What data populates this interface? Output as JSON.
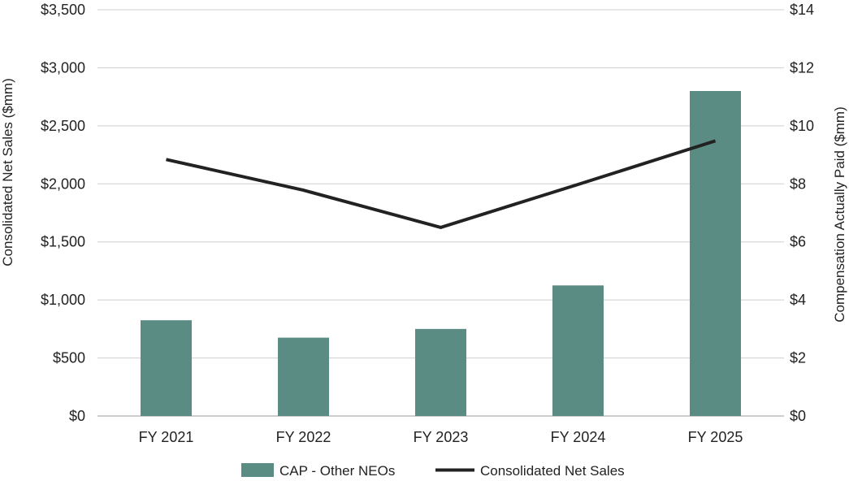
{
  "chart_data": {
    "type": "bar+line",
    "title": "",
    "categories": [
      "FY 2021",
      "FY 2022",
      "FY 2023",
      "FY 2024",
      "FY 2025"
    ],
    "left_axis": {
      "label": "Consolidated Net Sales ($mm)",
      "range": [
        0,
        3500
      ],
      "ticks": [
        0,
        500,
        1000,
        1500,
        2000,
        2500,
        3000,
        3500
      ],
      "tick_labels": [
        "$0",
        "$500",
        "$1,000",
        "$1,500",
        "$2,000",
        "$2,500",
        "$3,000",
        "$3,500"
      ]
    },
    "right_axis": {
      "label": "Compensation Actually Paid ($mm)",
      "range": [
        0,
        14
      ],
      "ticks": [
        0,
        2,
        4,
        6,
        8,
        10,
        12,
        14
      ],
      "tick_labels": [
        "$0",
        "$2",
        "$4",
        "$6",
        "$8",
        "$10",
        "$12",
        "$14"
      ]
    },
    "series": [
      {
        "name": "CAP - Other NEOs",
        "type": "bar",
        "axis": "right",
        "color": "#5b8c84",
        "values": [
          3.3,
          2.7,
          3.0,
          4.5,
          11.2
        ]
      },
      {
        "name": "Consolidated Net Sales",
        "type": "line",
        "axis": "left",
        "color": "#222222",
        "values": [
          2210,
          1945,
          1625,
          1995,
          2370
        ]
      }
    ],
    "grid": true,
    "legend_position": "bottom"
  }
}
